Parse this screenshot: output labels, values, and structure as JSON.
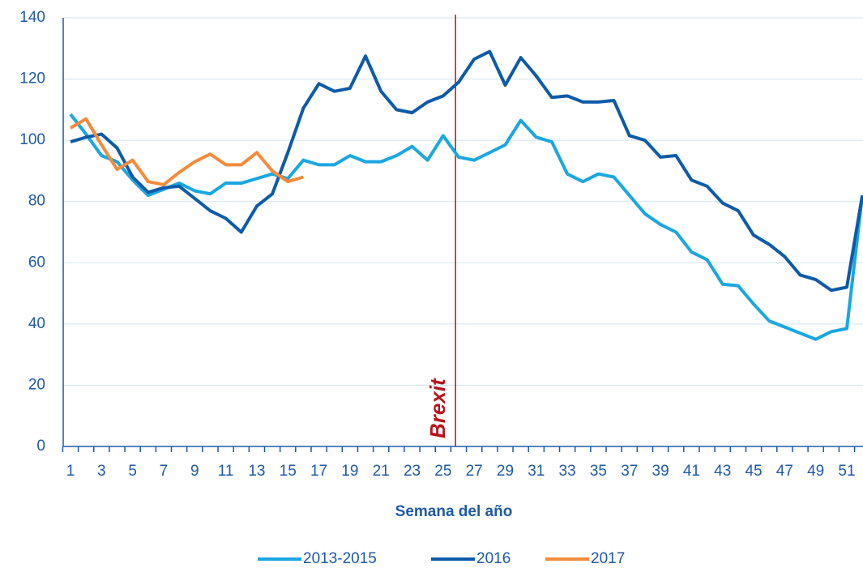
{
  "chart_data": {
    "type": "line",
    "x_label": "Semana del año",
    "categories": [
      1,
      null,
      3,
      null,
      5,
      null,
      7,
      null,
      9,
      null,
      11,
      null,
      13,
      null,
      15,
      null,
      17,
      null,
      19,
      null,
      21,
      null,
      23,
      null,
      25,
      null,
      27,
      null,
      29,
      null,
      31,
      null,
      33,
      null,
      35,
      null,
      37,
      null,
      39,
      null,
      41,
      null,
      43,
      null,
      45,
      null,
      47,
      null,
      49,
      null,
      51,
      null
    ],
    "ylim": [
      0,
      140
    ],
    "yticks": [
      0,
      20,
      40,
      60,
      80,
      100,
      120,
      140
    ],
    "grid": true,
    "legend": "bottom",
    "annotations": [
      {
        "text": "Brexit",
        "x": 25.8,
        "color": "#b8141b"
      }
    ],
    "series": [
      {
        "name": "2013-2015",
        "color": "#1aa7e0",
        "values": [
          108.5,
          102,
          95,
          93,
          87,
          82,
          84,
          86,
          83.5,
          82.5,
          86,
          86,
          87.5,
          89,
          87.5,
          93.5,
          92,
          92,
          95,
          93,
          93,
          95,
          98,
          93.5,
          101.5,
          94.5,
          93.5,
          96,
          98.5,
          106.5,
          101,
          99.5,
          89,
          86.5,
          89,
          88,
          82,
          76,
          72.5,
          70,
          63.5,
          61,
          53,
          52.5,
          46.5,
          41,
          39,
          37,
          35,
          37.5,
          38.5,
          82
        ]
      },
      {
        "name": "2016",
        "color": "#0d5ba8",
        "values": [
          99.5,
          101,
          102,
          97.5,
          88,
          83,
          84.5,
          85,
          81,
          77,
          74.5,
          70,
          78.5,
          82.5,
          96,
          110.5,
          118.5,
          116,
          117,
          127.5,
          116,
          110,
          109,
          112.5,
          114.5,
          119,
          126.5,
          129,
          118,
          127,
          121,
          114,
          114.5,
          112.5,
          112.5,
          113,
          101.5,
          100,
          94.5,
          95,
          87,
          85,
          79.5,
          77,
          69,
          66,
          62,
          56,
          54.5,
          51,
          52,
          82
        ]
      },
      {
        "name": "2017",
        "color": "#f38b3c",
        "values": [
          104,
          107,
          98.5,
          90.5,
          93.5,
          86.5,
          85.5,
          89.5,
          93,
          95.5,
          92,
          92,
          96,
          90,
          86.5,
          88,
          null,
          null,
          null,
          null,
          null,
          null,
          null,
          null,
          null,
          null,
          null,
          null,
          null,
          null,
          null,
          null,
          null,
          null,
          null,
          null,
          null,
          null,
          null,
          null,
          null,
          null,
          null,
          null,
          null,
          null,
          null,
          null,
          null,
          null,
          null,
          null
        ]
      }
    ]
  }
}
